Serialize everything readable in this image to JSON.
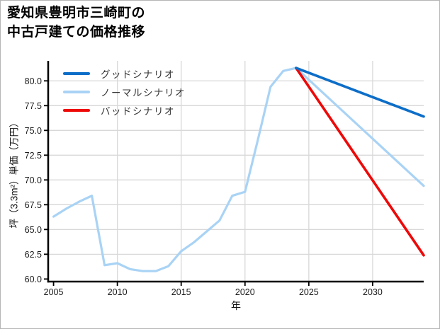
{
  "header": {
    "title_lines": [
      "愛知県豊明市三崎町の",
      "中古戸建ての価格推移"
    ]
  },
  "chart_data": {
    "type": "line",
    "title": "愛知県豊明市三崎町の中古戸建ての価格推移",
    "xlabel": "年",
    "ylabel": "坪（3.3m²）単価（万円）",
    "xlim": [
      2004.58,
      2034.0
    ],
    "ylim": [
      59.74,
      82.02
    ],
    "x_ticks": [
      2005,
      2010,
      2015,
      2020,
      2025,
      2030
    ],
    "y_ticks": [
      60.0,
      62.5,
      65.0,
      67.5,
      70.0,
      72.5,
      75.0,
      77.5,
      80.0
    ],
    "grid": true,
    "legend_position": "upper left",
    "series": [
      {
        "name": "グッドシナリオ",
        "color": "#0d6ec8",
        "stroke_width": 3.6,
        "x": [
          2024,
          2034
        ],
        "values": [
          81.3,
          76.4
        ]
      },
      {
        "name": "ノーマルシナリオ",
        "color": "#a9d3f5",
        "stroke_width": 3.2,
        "x": [
          2005,
          2006,
          2007,
          2008,
          2009,
          2010,
          2011,
          2012,
          2013,
          2014,
          2015,
          2016,
          2017,
          2018,
          2019,
          2020,
          2021,
          2022,
          2023,
          2024,
          2034
        ],
        "values": [
          66.3,
          67.1,
          67.8,
          68.4,
          61.4,
          61.6,
          61.0,
          60.8,
          60.8,
          61.3,
          62.8,
          63.7,
          64.8,
          65.9,
          68.4,
          68.8,
          74.0,
          79.4,
          81.0,
          81.3,
          69.4
        ]
      },
      {
        "name": "バッドシナリオ",
        "color": "#ee0808",
        "stroke_width": 3.6,
        "x": [
          2024,
          2034
        ],
        "values": [
          81.3,
          62.4
        ]
      }
    ],
    "draw_order": [
      1,
      2,
      0
    ],
    "colors": {
      "grid": "#d8d8d8",
      "axis": "#000000",
      "tick_label": "#1a1a1a"
    }
  }
}
